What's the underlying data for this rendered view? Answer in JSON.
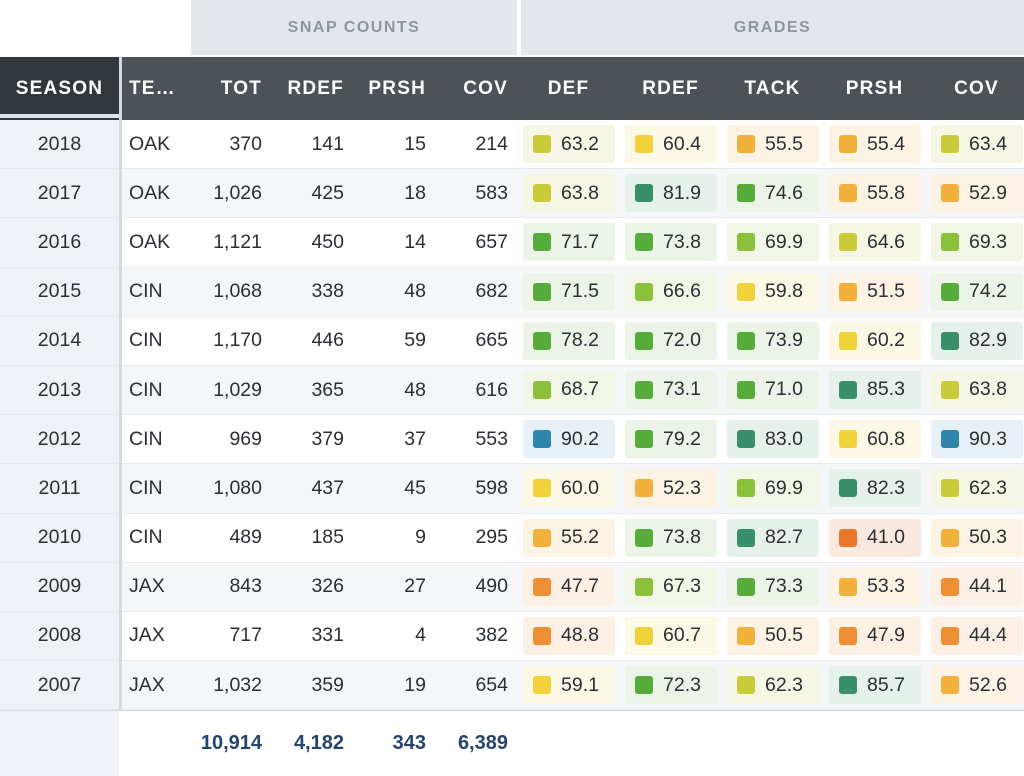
{
  "groups": {
    "snap_counts": "SNAP COUNTS",
    "grades": "GRADES"
  },
  "headers": {
    "season": "SEASON",
    "team": "TE…",
    "tot": "TOT",
    "rdef": "RDEF",
    "prsh": "PRSH",
    "cov": "COV",
    "g_def": "DEF",
    "g_rdef": "RDEF",
    "g_tack": "TACK",
    "g_prsh": "PRSH",
    "g_cov": "COV"
  },
  "rows": [
    {
      "season": "2018",
      "team": "OAK",
      "tot": "370",
      "rdef": "141",
      "prsh": "15",
      "cov": "214",
      "grades": [
        "63.2",
        "60.4",
        "55.5",
        "55.4",
        "63.4"
      ]
    },
    {
      "season": "2017",
      "team": "OAK",
      "tot": "1,026",
      "rdef": "425",
      "prsh": "18",
      "cov": "583",
      "grades": [
        "63.8",
        "81.9",
        "74.6",
        "55.8",
        "52.9"
      ]
    },
    {
      "season": "2016",
      "team": "OAK",
      "tot": "1,121",
      "rdef": "450",
      "prsh": "14",
      "cov": "657",
      "grades": [
        "71.7",
        "73.8",
        "69.9",
        "64.6",
        "69.3"
      ]
    },
    {
      "season": "2015",
      "team": "CIN",
      "tot": "1,068",
      "rdef": "338",
      "prsh": "48",
      "cov": "682",
      "grades": [
        "71.5",
        "66.6",
        "59.8",
        "51.5",
        "74.2"
      ]
    },
    {
      "season": "2014",
      "team": "CIN",
      "tot": "1,170",
      "rdef": "446",
      "prsh": "59",
      "cov": "665",
      "grades": [
        "78.2",
        "72.0",
        "73.9",
        "60.2",
        "82.9"
      ]
    },
    {
      "season": "2013",
      "team": "CIN",
      "tot": "1,029",
      "rdef": "365",
      "prsh": "48",
      "cov": "616",
      "grades": [
        "68.7",
        "73.1",
        "71.0",
        "85.3",
        "63.8"
      ]
    },
    {
      "season": "2012",
      "team": "CIN",
      "tot": "969",
      "rdef": "379",
      "prsh": "37",
      "cov": "553",
      "grades": [
        "90.2",
        "79.2",
        "83.0",
        "60.8",
        "90.3"
      ]
    },
    {
      "season": "2011",
      "team": "CIN",
      "tot": "1,080",
      "rdef": "437",
      "prsh": "45",
      "cov": "598",
      "grades": [
        "60.0",
        "52.3",
        "69.9",
        "82.3",
        "62.3"
      ]
    },
    {
      "season": "2010",
      "team": "CIN",
      "tot": "489",
      "rdef": "185",
      "prsh": "9",
      "cov": "295",
      "grades": [
        "55.2",
        "73.8",
        "82.7",
        "41.0",
        "50.3"
      ]
    },
    {
      "season": "2009",
      "team": "JAX",
      "tot": "843",
      "rdef": "326",
      "prsh": "27",
      "cov": "490",
      "grades": [
        "47.7",
        "67.3",
        "73.3",
        "53.3",
        "44.1"
      ]
    },
    {
      "season": "2008",
      "team": "JAX",
      "tot": "717",
      "rdef": "331",
      "prsh": "4",
      "cov": "382",
      "grades": [
        "48.8",
        "60.7",
        "50.5",
        "47.9",
        "44.4"
      ]
    },
    {
      "season": "2007",
      "team": "JAX",
      "tot": "1,032",
      "rdef": "359",
      "prsh": "19",
      "cov": "654",
      "grades": [
        "59.1",
        "72.3",
        "62.3",
        "85.7",
        "52.6"
      ]
    }
  ],
  "totals": {
    "tot": "10,914",
    "rdef": "4,182",
    "prsh": "343",
    "cov": "6,389"
  },
  "grade_scale": [
    {
      "min": 90,
      "color": "#2e86ab",
      "bg": "#e6f0f6"
    },
    {
      "min": 80,
      "color": "#3a8f6b",
      "bg": "#e6f1ec"
    },
    {
      "min": 70,
      "color": "#57ab3a",
      "bg": "#ebf4e6"
    },
    {
      "min": 65,
      "color": "#8cbf3a",
      "bg": "#f1f6e6"
    },
    {
      "min": 62,
      "color": "#c9cb3a",
      "bg": "#f6f6e4"
    },
    {
      "min": 58,
      "color": "#f2d23a",
      "bg": "#fcf8e6"
    },
    {
      "min": 50,
      "color": "#f2b03c",
      "bg": "#fcf3e4"
    },
    {
      "min": 44,
      "color": "#ef8f35",
      "bg": "#fcefe4"
    },
    {
      "min": 0,
      "color": "#e9752a",
      "bg": "#fbe9df"
    }
  ]
}
